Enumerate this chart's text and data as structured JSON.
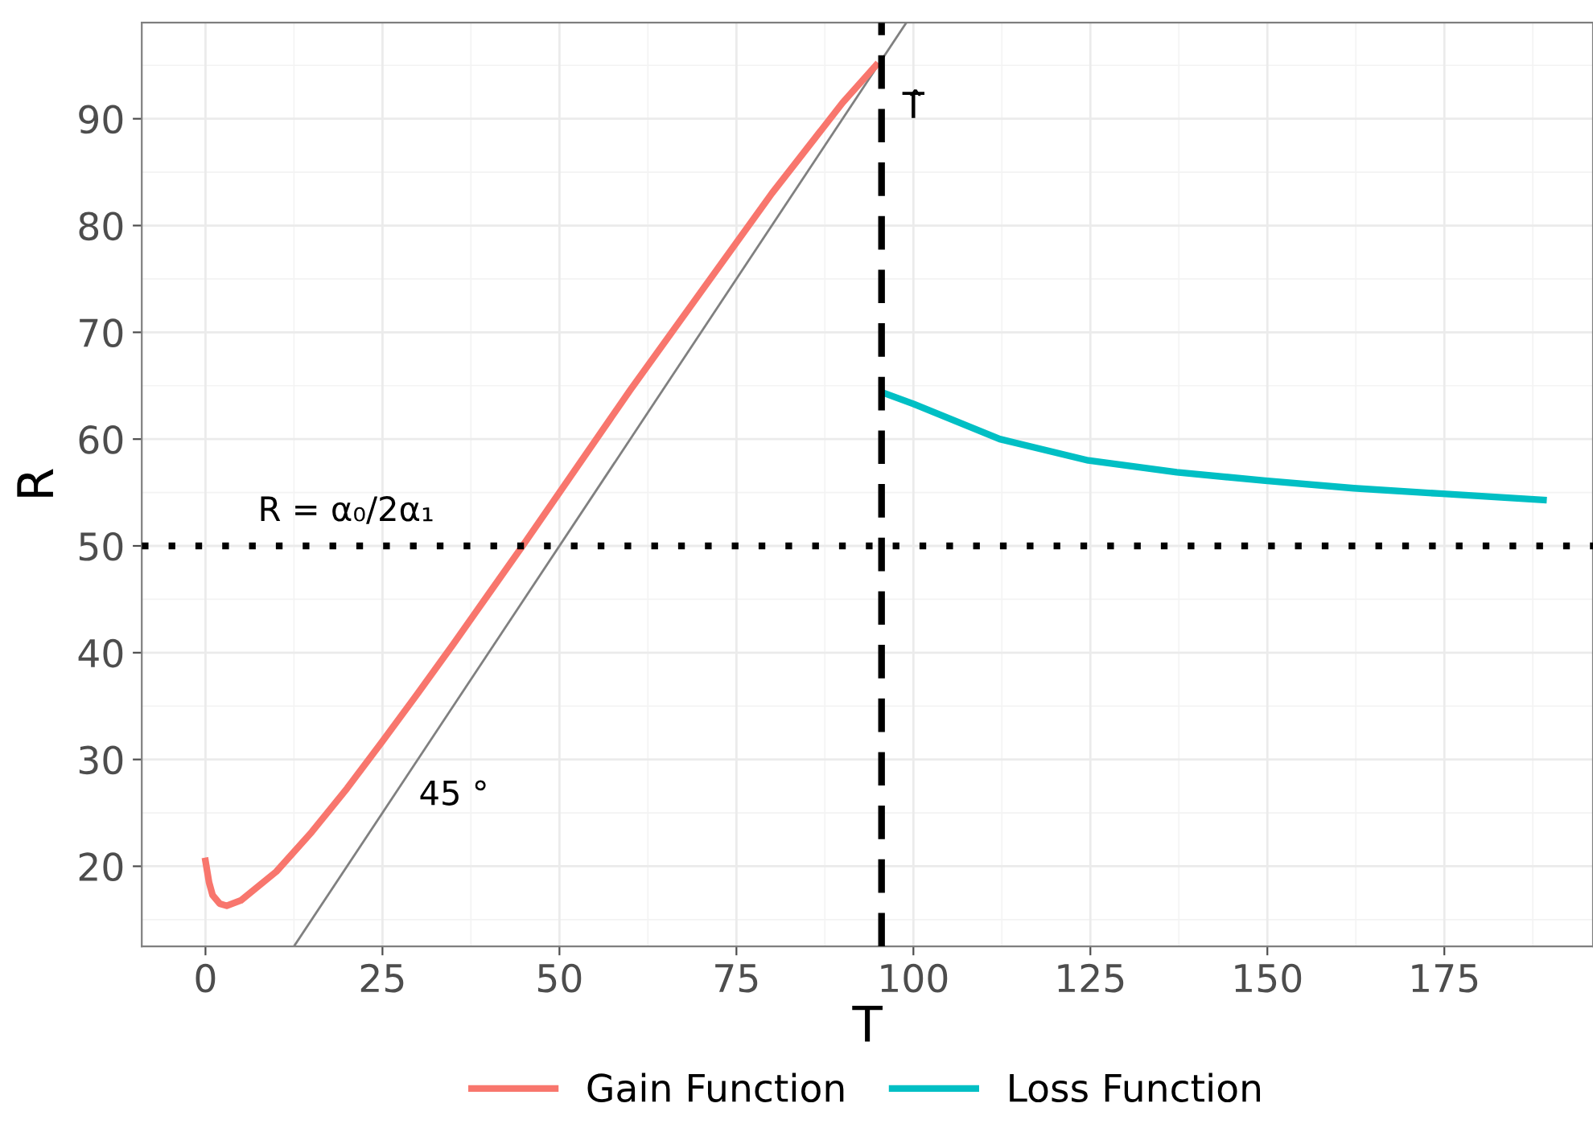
{
  "chart_data": {
    "type": "line",
    "xlabel": "T",
    "ylabel": "R",
    "xlim": [
      -9,
      196
    ],
    "ylim": [
      12.5,
      99
    ],
    "xticks": [
      0,
      25,
      50,
      75,
      100,
      125,
      150,
      175
    ],
    "yticks": [
      20,
      30,
      40,
      50,
      60,
      70,
      80,
      90
    ],
    "grid": true,
    "legend": "bottom",
    "marker": "none",
    "series": [
      {
        "name": "Gain Function",
        "color": "#f8766d",
        "x": [
          0,
          0.5,
          1,
          2,
          3,
          5,
          10,
          15,
          20,
          25,
          30,
          35,
          40,
          45,
          50,
          60,
          70,
          80,
          90,
          94.7
        ],
        "values": [
          20.5,
          18.5,
          17.3,
          16.5,
          16.3,
          16.8,
          19.5,
          23.2,
          27.3,
          31.7,
          36.2,
          40.8,
          45.5,
          50.2,
          55,
          64.6,
          73.8,
          83,
          91.5,
          95
        ]
      },
      {
        "name": "Loss Function",
        "color": "#00bfc4",
        "x": [
          95.9,
          100,
          112.2,
          124.7,
          137.2,
          149.7,
          162.2,
          174.3,
          189
        ],
        "values": [
          64.3,
          63.3,
          60,
          58,
          56.9,
          56.1,
          55.4,
          54.9,
          54.3
        ]
      },
      {
        "type": "line",
        "color": "#808080",
        "line_style": "solid",
        "x": [
          12.5,
          99
        ],
        "values": [
          12.5,
          99
        ]
      }
    ],
    "ref_lines": [
      {
        "axis": "x",
        "value": 95.5,
        "label": "T̂",
        "line_style": "dashed",
        "color": "#000000"
      },
      {
        "axis": "y",
        "value": 50,
        "label": "R = α₀/2α₁",
        "line_style": "dotted",
        "color": "#000000"
      }
    ],
    "annotations": [
      "45 °"
    ]
  }
}
